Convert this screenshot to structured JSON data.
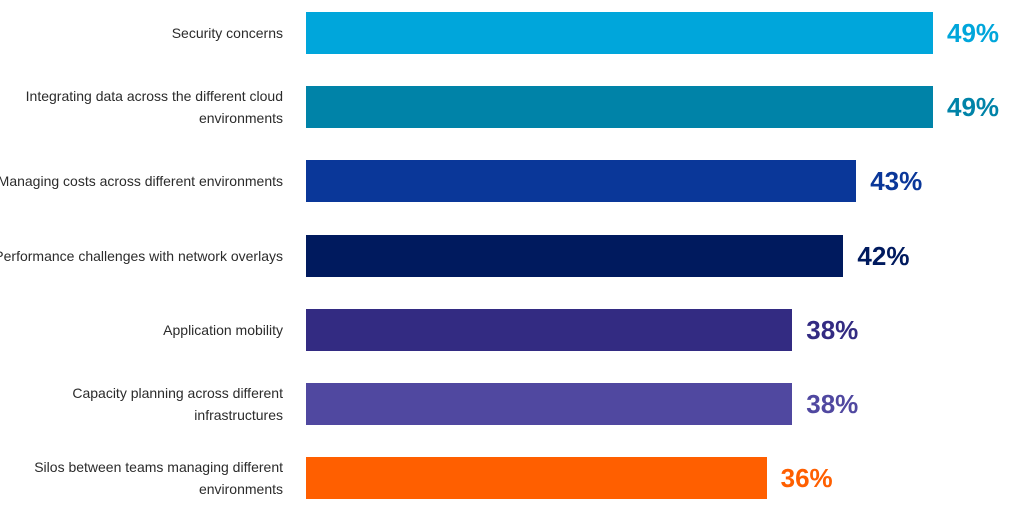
{
  "chart_data": {
    "type": "bar",
    "orientation": "horizontal",
    "xlim": [
      0,
      49
    ],
    "categories": [
      "Security concerns",
      "Integrating data across the different cloud environments",
      "Managing costs across different environments",
      "Performance challenges with network overlays",
      "Application mobility",
      "Capacity planning across different infrastructures",
      "Silos between teams managing different environments"
    ],
    "values": [
      49,
      49,
      43,
      42,
      38,
      38,
      36
    ],
    "value_labels": [
      "49%",
      "49%",
      "43%",
      "42%",
      "38%",
      "38%",
      "36%"
    ],
    "colors": [
      "#00A6DB",
      "#0083A8",
      "#0A3799",
      "#001A5E",
      "#332B82",
      "#5048A0",
      "#FF5F00"
    ],
    "grid": false,
    "legend": "none"
  }
}
